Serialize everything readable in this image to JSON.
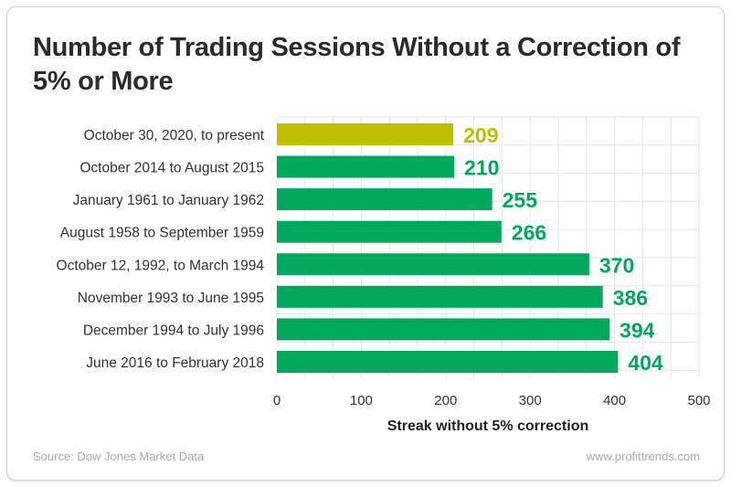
{
  "title": "Number of Trading Sessions Without a Correction of 5% or More",
  "footer": {
    "source": "Source: Dow Jones Market Data",
    "website": "www.profittrends.com"
  },
  "chart_data": {
    "type": "bar",
    "orientation": "horizontal",
    "title": "Number of Trading Sessions Without a Correction of 5% or More",
    "xlabel": "Streak without 5% correction",
    "ylabel": "",
    "xlim": [
      0,
      500
    ],
    "xticks": [
      0,
      100,
      200,
      300,
      400,
      500
    ],
    "grid": true,
    "categories": [
      "October 30, 2020, to present",
      "October 2014 to August 2015",
      "January 1961 to January 1962",
      "August 1958 to September 1959",
      "October 12, 1992, to March 1994",
      "November 1993 to June 1995",
      "December 1994 to July 1996",
      "June 2016 to February 2018"
    ],
    "values": [
      209,
      210,
      255,
      266,
      370,
      386,
      394,
      404
    ],
    "colors": [
      "#bfbf00",
      "#00a95c",
      "#00a95c",
      "#00a95c",
      "#00a95c",
      "#00a95c",
      "#00a95c",
      "#00a95c"
    ]
  }
}
